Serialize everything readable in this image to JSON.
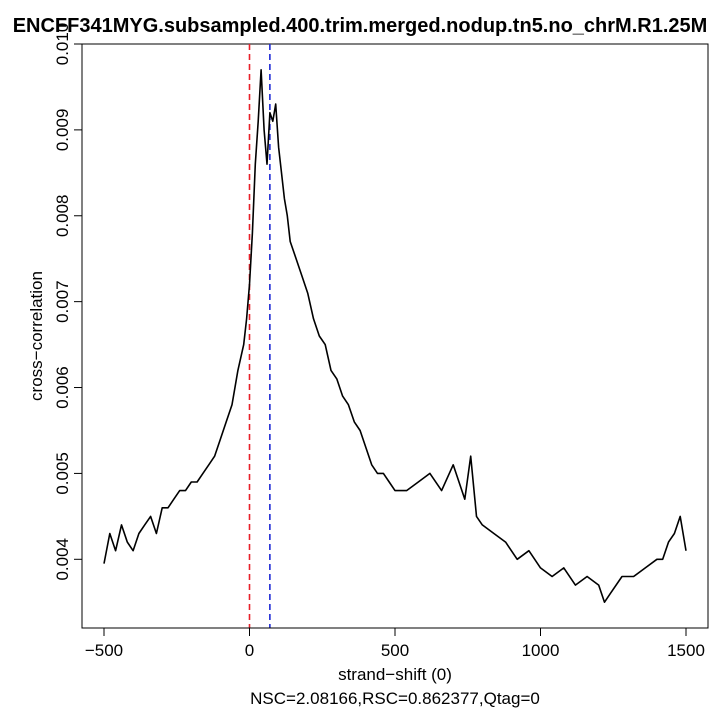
{
  "chart_data": {
    "type": "line",
    "title": "ENCFF341MYG.subsampled.400.trim.merged.nodup.tn5.no_chrM.R1.25M",
    "xlabel": "strand−shift (0)",
    "ylabel": "cross−correlation",
    "subtitle": "NSC=2.08166,RSC=0.862377,Qtag=0",
    "xlim": [
      -500,
      1500
    ],
    "ylim": [
      0.0032,
      0.01
    ],
    "x_ticks": [
      -500,
      0,
      500,
      1000,
      1500
    ],
    "x_tick_labels": [
      "−500",
      "0",
      "500",
      "1000",
      "1500"
    ],
    "y_ticks": [
      0.004,
      0.005,
      0.006,
      0.007,
      0.008,
      0.009,
      0.01
    ],
    "y_tick_labels": [
      "0.004",
      "0.005",
      "0.006",
      "0.007",
      "0.008",
      "0.009",
      "0.010"
    ],
    "grid": false,
    "series": [
      {
        "color": "#000000",
        "x": [
          -500,
          -480,
          -460,
          -440,
          -420,
          -400,
          -380,
          -360,
          -340,
          -320,
          -300,
          -280,
          -260,
          -240,
          -220,
          -200,
          -180,
          -160,
          -140,
          -120,
          -100,
          -80,
          -60,
          -40,
          -20,
          -10,
          0,
          10,
          20,
          30,
          40,
          50,
          60,
          70,
          80,
          90,
          100,
          110,
          120,
          130,
          140,
          160,
          180,
          200,
          220,
          240,
          260,
          280,
          300,
          320,
          340,
          360,
          380,
          400,
          420,
          440,
          460,
          480,
          500,
          540,
          580,
          620,
          660,
          700,
          740,
          760,
          780,
          800,
          840,
          880,
          920,
          960,
          1000,
          1040,
          1080,
          1120,
          1160,
          1200,
          1220,
          1240,
          1280,
          1320,
          1360,
          1400,
          1420,
          1440,
          1460,
          1480,
          1500
        ],
        "y": [
          0.00395,
          0.0043,
          0.0041,
          0.0044,
          0.0042,
          0.0041,
          0.0043,
          0.0044,
          0.0045,
          0.0043,
          0.0046,
          0.0046,
          0.0047,
          0.0048,
          0.0048,
          0.0049,
          0.0049,
          0.005,
          0.0051,
          0.0052,
          0.0054,
          0.0056,
          0.0058,
          0.0062,
          0.0065,
          0.0068,
          0.0072,
          0.0078,
          0.0086,
          0.0091,
          0.0097,
          0.009,
          0.0086,
          0.0092,
          0.0091,
          0.0093,
          0.0088,
          0.0085,
          0.0082,
          0.008,
          0.0077,
          0.0075,
          0.0073,
          0.0071,
          0.0068,
          0.0066,
          0.0065,
          0.0062,
          0.0061,
          0.0059,
          0.0058,
          0.0056,
          0.0055,
          0.0053,
          0.0051,
          0.005,
          0.005,
          0.0049,
          0.0048,
          0.0048,
          0.0049,
          0.005,
          0.0048,
          0.0051,
          0.0047,
          0.0052,
          0.0045,
          0.0044,
          0.0043,
          0.0042,
          0.004,
          0.0041,
          0.0039,
          0.0038,
          0.0039,
          0.0037,
          0.0038,
          0.0037,
          0.0035,
          0.0036,
          0.0038,
          0.0038,
          0.0039,
          0.004,
          0.004,
          0.0042,
          0.0043,
          0.0045,
          0.0041
        ]
      }
    ],
    "reference_lines": [
      {
        "x": 0,
        "color": "#e8202a"
      },
      {
        "x": 70,
        "color": "#1f2bd6"
      }
    ]
  }
}
